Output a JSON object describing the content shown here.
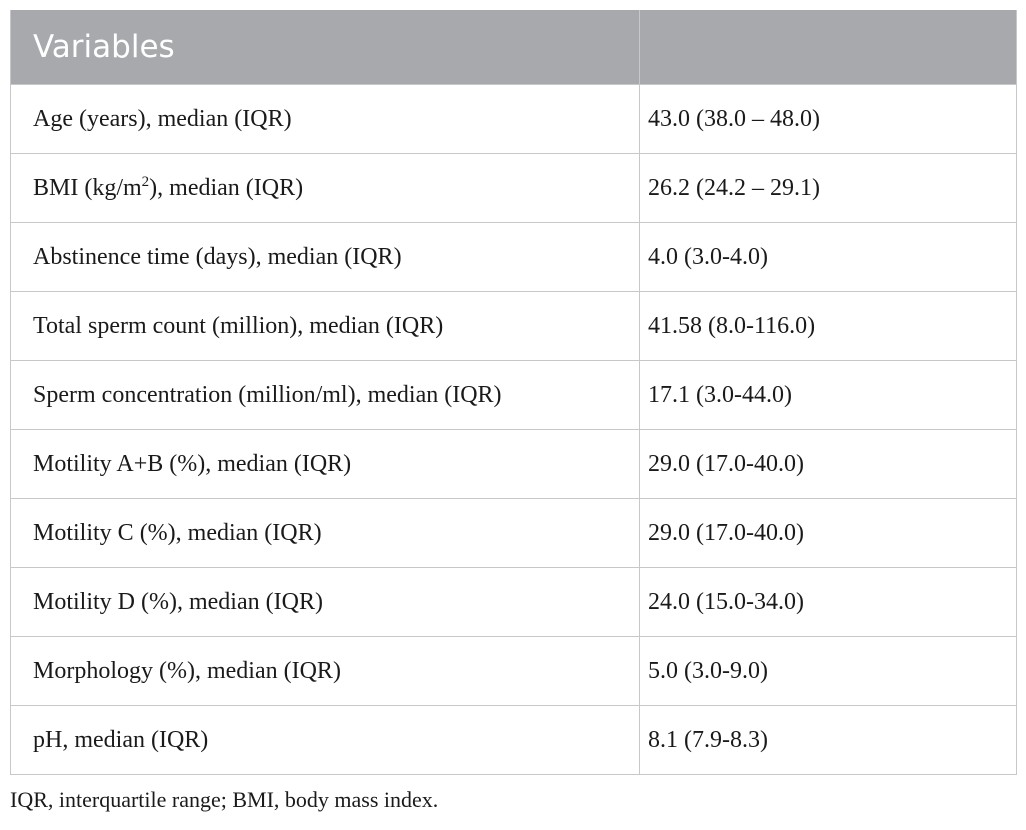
{
  "table": {
    "headers": [
      "Variables",
      ""
    ],
    "rows": [
      {
        "label": "Age (years), median (IQR)",
        "value": "43.0 (38.0 – 48.0)"
      },
      {
        "label_pre": "BMI (kg/m",
        "label_sup": "2",
        "label_post": "), median (IQR)",
        "value": "26.2 (24.2 – 29.1)"
      },
      {
        "label": "Abstinence time (days), median (IQR)",
        "value": "4.0 (3.0-4.0)"
      },
      {
        "label": "Total sperm count (million), median (IQR)",
        "value": "41.58 (8.0-116.0)"
      },
      {
        "label": "Sperm concentration (million/ml), median (IQR)",
        "value": "17.1 (3.0-44.0)"
      },
      {
        "label": "Motility A+B (%), median (IQR)",
        "value": "29.0 (17.0-40.0)"
      },
      {
        "label": "Motility C (%), median (IQR)",
        "value": "29.0 (17.0-40.0)"
      },
      {
        "label": "Motility D (%), median (IQR)",
        "value": "24.0 (15.0-34.0)"
      },
      {
        "label": "Morphology (%), median (IQR)",
        "value": "5.0 (3.0-9.0)"
      },
      {
        "label": "pH, median (IQR)",
        "value": "8.1 (7.9-8.3)"
      }
    ]
  },
  "footnote": "IQR, interquartile range; BMI, body mass index.",
  "colors": {
    "header_bg": "#a7a9ac",
    "header_text": "#ffffff",
    "grid": "#c8c8c8",
    "text": "#1a1a1a"
  }
}
